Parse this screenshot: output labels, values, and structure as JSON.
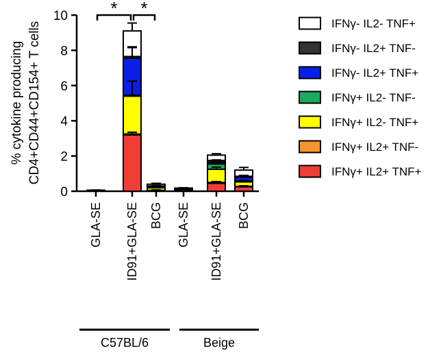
{
  "chart_data": {
    "type": "bar",
    "stacked": true,
    "ylabel": [
      "% cytokine producing",
      "CD4+CD44+CD154+ T cells"
    ],
    "ylim": [
      0,
      10
    ],
    "yticks": [
      "0",
      "2",
      "4",
      "6",
      "8",
      "10"
    ],
    "categories": [
      "GLA-SE",
      "ID91+GLA-SE",
      "BCG",
      "GLA-SE",
      "ID91+GLA-SE",
      "BCG"
    ],
    "groups": [
      {
        "label": "C57BL/6",
        "categories": [
          0,
          1,
          2
        ]
      },
      {
        "label": "Beige",
        "categories": [
          3,
          4,
          5
        ]
      }
    ],
    "series": [
      {
        "name": "IFNγ+ IL2+ TNF+",
        "color": "#ef3e36",
        "values": [
          0.02,
          3.2,
          0.05,
          0.03,
          0.45,
          0.25
        ],
        "errors": [
          0.01,
          0.15,
          0.03,
          0.02,
          0.1,
          0.06
        ]
      },
      {
        "name": "IFNγ+ IL2+ TNF-",
        "color": "#f7942d",
        "values": [
          0.0,
          0.05,
          0.0,
          0.0,
          0.05,
          0.03
        ],
        "errors": [
          0,
          0,
          0,
          0,
          0,
          0
        ]
      },
      {
        "name": "IFNγ+ IL2- TNF+",
        "color": "#ffff00",
        "values": [
          0.02,
          2.15,
          0.15,
          0.05,
          0.75,
          0.25
        ],
        "errors": [
          0.01,
          0.85,
          0.05,
          0.02,
          0.12,
          0.08
        ]
      },
      {
        "name": "IFNγ+ IL2- TNF-",
        "color": "#1aab61",
        "values": [
          0.0,
          0.05,
          0.02,
          0.01,
          0.3,
          0.05
        ],
        "errors": [
          0,
          0,
          0,
          0,
          0.05,
          0
        ]
      },
      {
        "name": "IFNγ- IL2+ TNF+",
        "color": "#0a1fe6",
        "values": [
          0.01,
          2.1,
          0.05,
          0.04,
          0.1,
          0.22
        ],
        "errors": [
          0.01,
          0.65,
          0.02,
          0.02,
          0.03,
          0.08
        ]
      },
      {
        "name": "IFNγ- IL2+ TNF-",
        "color": "#333333",
        "values": [
          0.0,
          0.1,
          0.03,
          0.01,
          0.1,
          0.05
        ],
        "errors": [
          0,
          0.5,
          0.02,
          0,
          0.03,
          0.05
        ]
      },
      {
        "name": "IFNγ- IL2- TNF+",
        "color": "#ffffff",
        "values": [
          0.01,
          1.45,
          0.1,
          0.04,
          0.3,
          0.35
        ],
        "errors": [
          0.01,
          0.45,
          0.05,
          0.02,
          0.08,
          0.15
        ]
      }
    ],
    "legend_order": [
      6,
      5,
      4,
      3,
      2,
      1,
      0
    ],
    "legend_position": "right",
    "significance": [
      {
        "from": 0,
        "to": 1,
        "label": "*"
      },
      {
        "from": 1,
        "to": 2,
        "label": "*"
      }
    ]
  }
}
